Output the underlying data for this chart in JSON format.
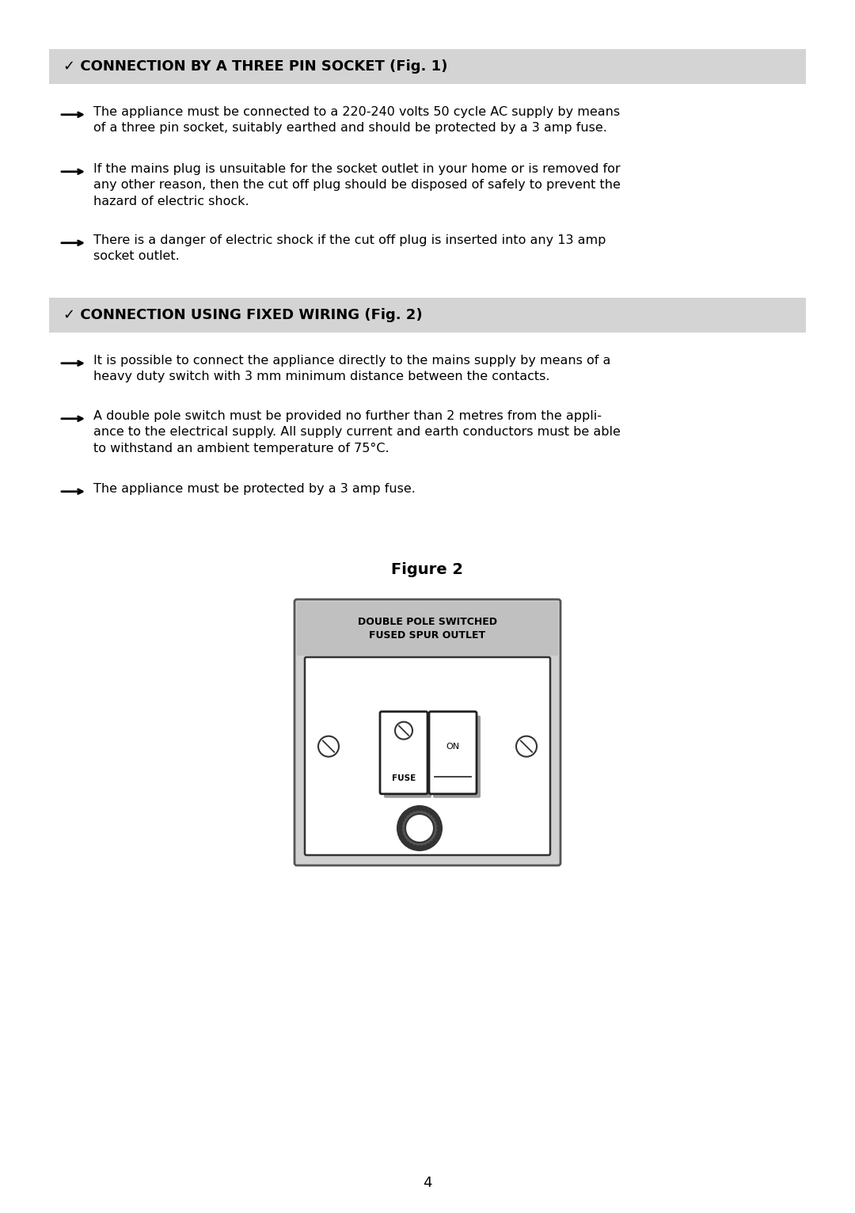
{
  "bg_color": "#ffffff",
  "section1_header": "✓ CONNECTION BY A THREE PIN SOCKET (Fig. 1)",
  "section1_header_bg": "#d4d4d4",
  "section1_bullets": [
    "The appliance must be connected to a 220-240 volts 50 cycle AC supply by means\nof a three pin socket, suitably earthed and should be protected by a 3 amp fuse.",
    "If the mains plug is unsuitable for the socket outlet in your home or is removed for\nany other reason, then the cut off plug should be disposed of safely to prevent the\nhazard of electric shock.",
    "There is a danger of electric shock if the cut off plug is inserted into any 13 amp\nsocket outlet."
  ],
  "section2_header": "✓ CONNECTION USING FIXED WIRING (Fig. 2)",
  "section2_header_bg": "#d4d4d4",
  "section2_bullets": [
    "It is possible to connect the appliance directly to the mains supply by means of a\nheavy duty switch with 3 mm minimum distance between the contacts.",
    "A double pole switch must be provided no further than 2 metres from the appli-\nance to the electrical supply. All supply current and earth conductors must be able\nto withstand an ambient temperature of 75°C.",
    "The appliance must be protected by a 3 amp fuse."
  ],
  "figure_label": "Figure 2",
  "page_number": "4",
  "diagram_label": "DOUBLE POLE SWITCHED\nFUSED SPUR OUTLET",
  "text_color": "#000000",
  "header_text_color": "#000000",
  "body_fontsize": 11.5,
  "header_fontsize": 13.0
}
